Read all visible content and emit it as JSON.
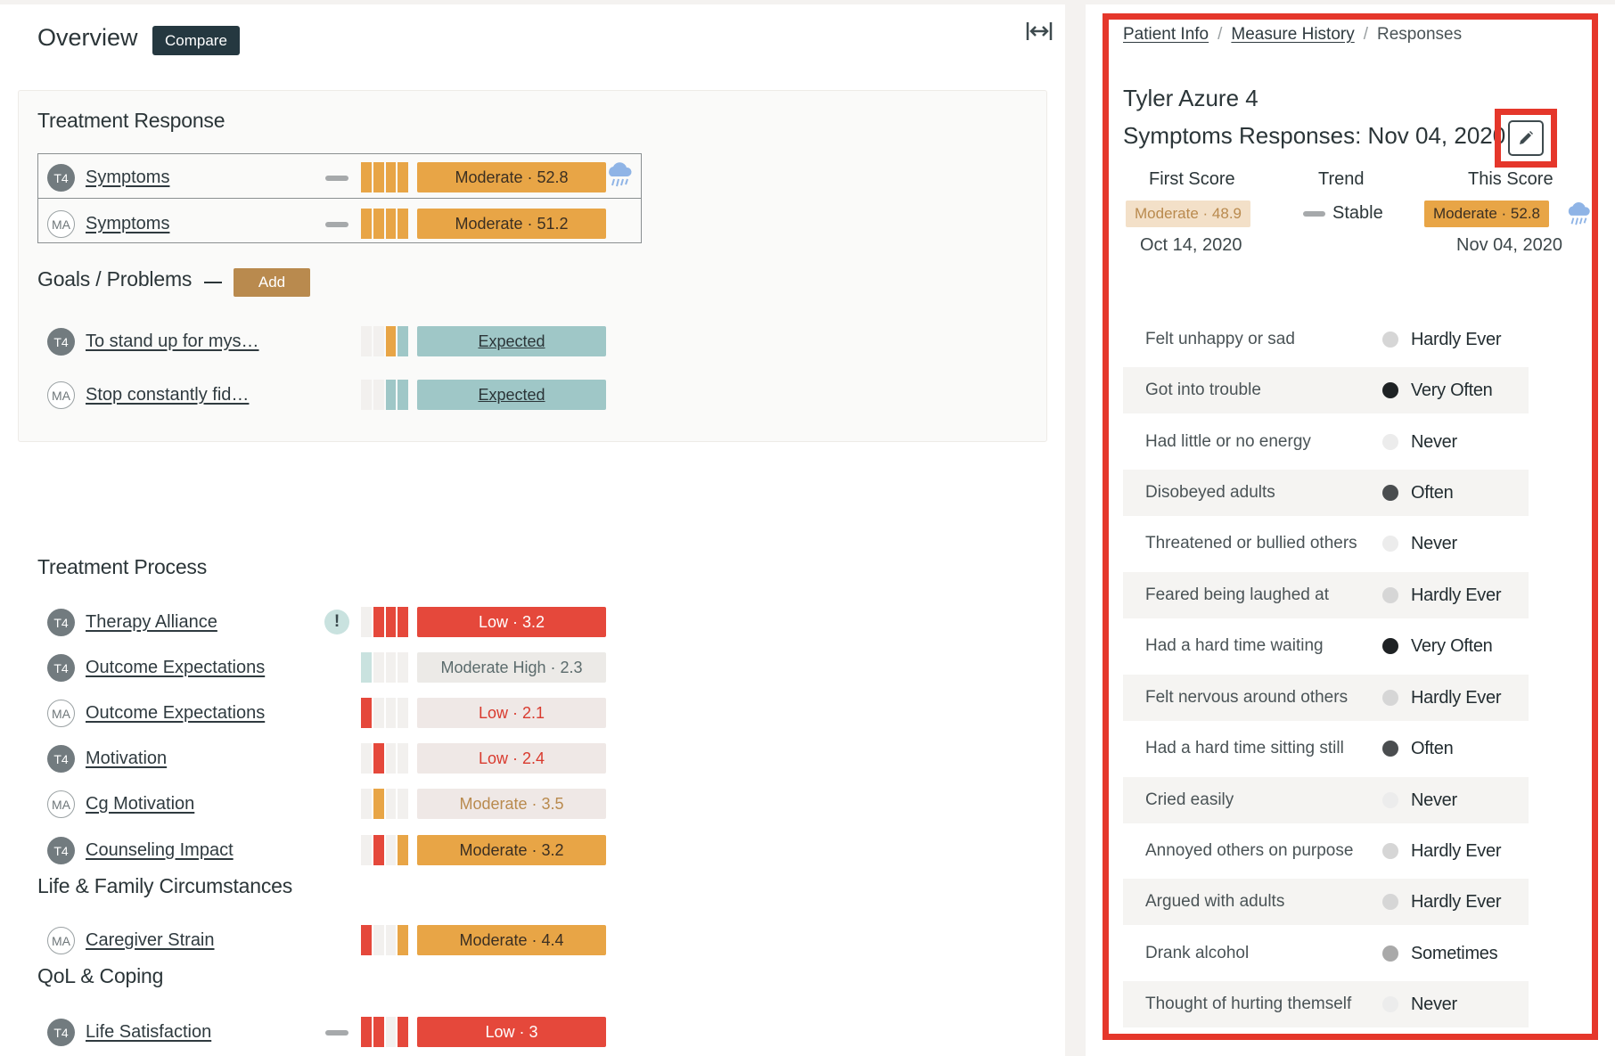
{
  "overview": {
    "title": "Overview",
    "compare_label": "Compare"
  },
  "treatment_response": {
    "title": "Treatment Response",
    "rows": [
      {
        "badge": "T4",
        "label": "Symptoms",
        "score": "Moderate · 52.8"
      },
      {
        "badge": "MA",
        "label": "Symptoms",
        "score": "Moderate · 51.2"
      }
    ]
  },
  "goals": {
    "title": "Goals / Problems",
    "add_label": "Add",
    "rows": [
      {
        "badge": "T4",
        "label": "To stand up for mys…",
        "score": "Expected"
      },
      {
        "badge": "MA",
        "label": "Stop constantly fid…",
        "score": "Expected"
      }
    ]
  },
  "treatment_process": {
    "title": "Treatment Process",
    "rows": [
      {
        "badge": "T4",
        "label": "Therapy Alliance",
        "score": "Low · 3.2"
      },
      {
        "badge": "T4",
        "label": "Outcome Expectations",
        "score": "Moderate High · 2.3"
      },
      {
        "badge": "MA",
        "label": "Outcome Expectations",
        "score": "Low · 2.1"
      },
      {
        "badge": "T4",
        "label": "Motivation",
        "score": "Low · 2.4"
      },
      {
        "badge": "MA",
        "label": "Cg Motivation",
        "score": "Moderate · 3.5"
      },
      {
        "badge": "T4",
        "label": "Counseling Impact",
        "score": "Moderate · 3.2"
      }
    ]
  },
  "life_family": {
    "title": "Life & Family Circumstances",
    "rows": [
      {
        "badge": "MA",
        "label": "Caregiver Strain",
        "score": "Moderate · 4.4"
      }
    ]
  },
  "qol": {
    "title": "QoL & Coping",
    "rows": [
      {
        "badge": "T4",
        "label": "Life Satisfaction",
        "score": "Low · 3"
      }
    ]
  },
  "detail": {
    "breadcrumb": [
      "Patient Info",
      "Measure History",
      "Responses"
    ],
    "patient_name": "Tyler Azure 4",
    "title": "Symptoms Responses: Nov 04, 2020",
    "first_score": {
      "header": "First Score",
      "value": "Moderate · 48.9",
      "date": "Oct 14, 2020"
    },
    "trend": {
      "header": "Trend",
      "value": "Stable"
    },
    "this_score": {
      "header": "This Score",
      "value": "Moderate · 52.8",
      "date": "Nov 04, 2020"
    },
    "responses": [
      {
        "question": "Felt unhappy or sad",
        "answer": "Hardly Ever"
      },
      {
        "question": "Got into trouble",
        "answer": "Very Often"
      },
      {
        "question": "Had little or no energy",
        "answer": "Never"
      },
      {
        "question": "Disobeyed adults",
        "answer": "Often"
      },
      {
        "question": "Threatened or bullied others",
        "answer": "Never"
      },
      {
        "question": "Feared being laughed at",
        "answer": "Hardly Ever"
      },
      {
        "question": "Had a hard time waiting",
        "answer": "Very Often"
      },
      {
        "question": "Felt nervous around others",
        "answer": "Hardly Ever"
      },
      {
        "question": "Had a hard time sitting still",
        "answer": "Often"
      },
      {
        "question": "Cried easily",
        "answer": "Never"
      },
      {
        "question": "Annoyed others on purpose",
        "answer": "Hardly Ever"
      },
      {
        "question": "Argued with adults",
        "answer": "Hardly Ever"
      },
      {
        "question": "Drank alcohol",
        "answer": "Sometimes"
      },
      {
        "question": "Thought of hurting themself",
        "answer": "Never"
      }
    ]
  },
  "colors": {
    "moderate": "#e8a546",
    "low": "#e5483b",
    "low_light": "#efe8e6",
    "expected": "#9fc7c7",
    "highlight_frame": "#e5372b",
    "dark_header": "#253840"
  }
}
